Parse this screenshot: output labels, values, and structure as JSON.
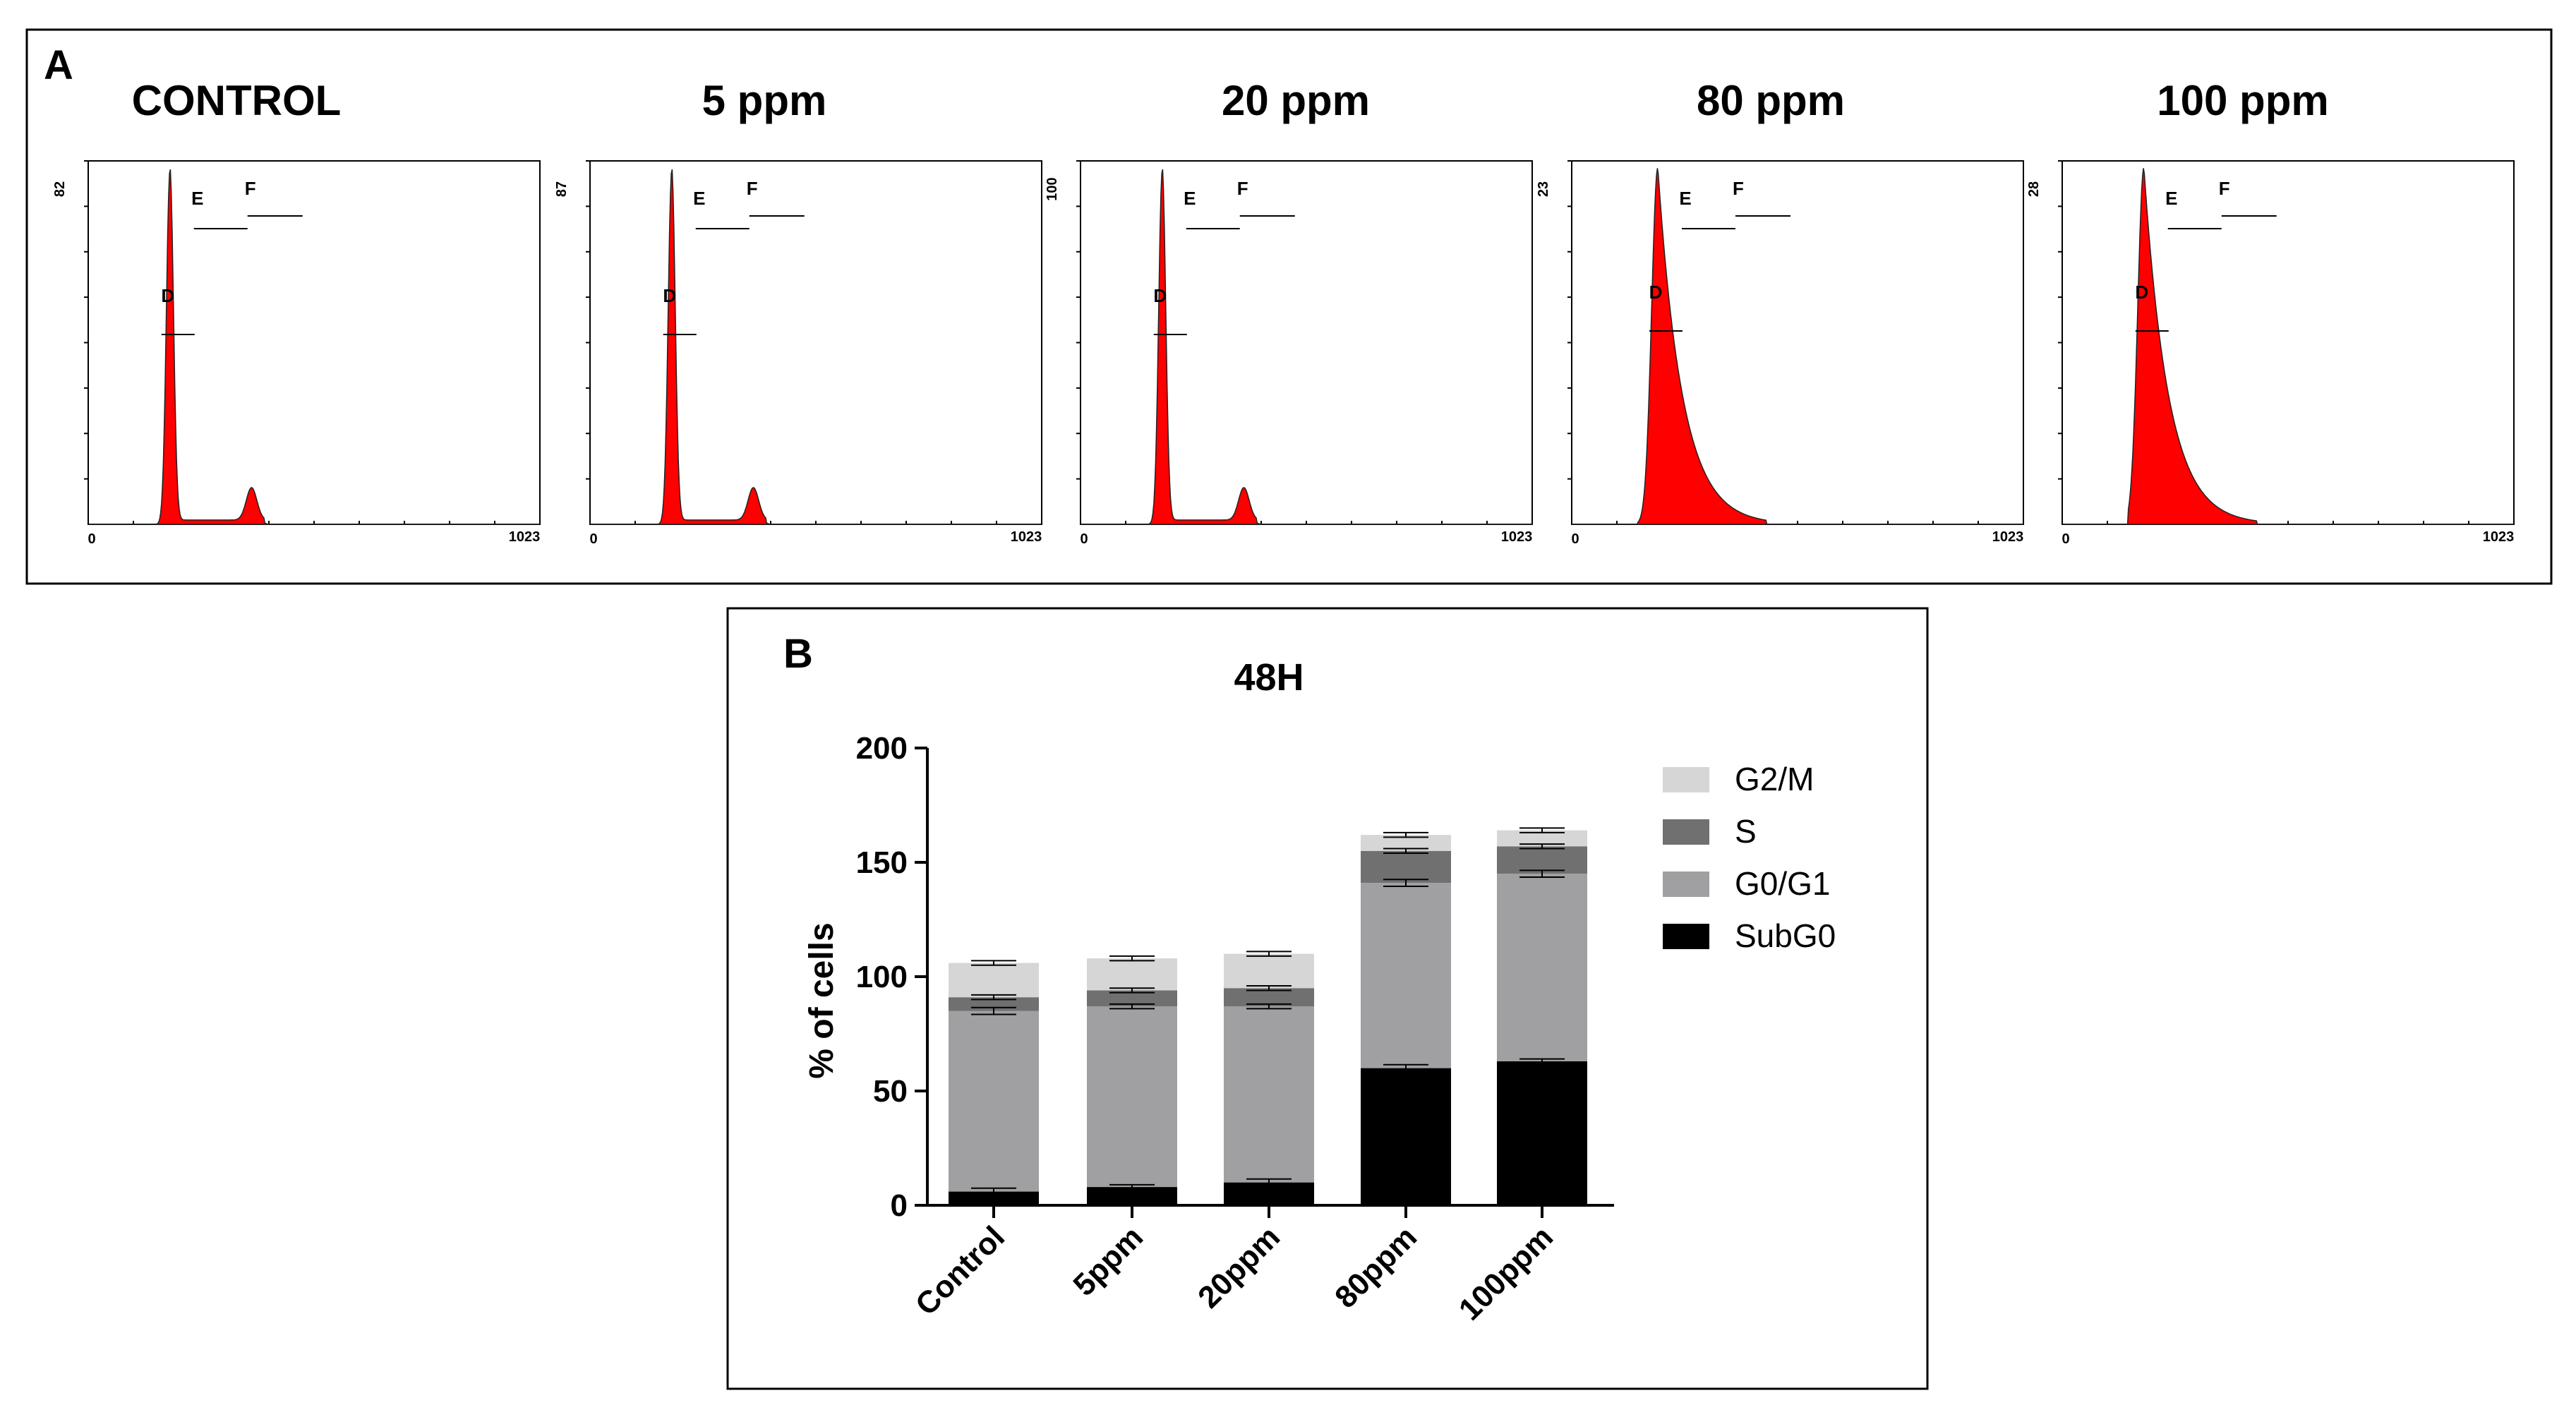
{
  "panel_a": {
    "label": "A",
    "histograms": [
      {
        "title": "CONTROL",
        "ymax": "82",
        "xmin": "0",
        "xmax": "1023",
        "gates": [
          "D",
          "E",
          "F"
        ]
      },
      {
        "title": "5 ppm",
        "ymax": "87",
        "xmin": "0",
        "xmax": "1023",
        "gates": [
          "D",
          "E",
          "F"
        ]
      },
      {
        "title": "20 ppm",
        "ymax": "100",
        "xmin": "0",
        "xmax": "1023",
        "gates": [
          "D",
          "E",
          "F"
        ]
      },
      {
        "title": "80 ppm",
        "ymax": "23",
        "xmin": "0",
        "xmax": "1023",
        "gates": [
          "D",
          "E",
          "F"
        ]
      },
      {
        "title": "100 ppm",
        "ymax": "28",
        "xmin": "0",
        "xmax": "1023",
        "gates": [
          "D",
          "E",
          "F"
        ]
      }
    ],
    "fill_color": "#ff0000"
  },
  "panel_b": {
    "label": "B"
  },
  "chart_data": [
    {
      "type": "histogram",
      "panel": "A",
      "description_series": "DNA content flow cytometry histograms (channel 0-1023)",
      "x_range": [
        0,
        1023
      ],
      "series": [
        {
          "name": "CONTROL",
          "y_max": 82,
          "g1_peak_channel": 185,
          "g2_peak_channel": 370
        },
        {
          "name": "5 ppm",
          "y_max": 87,
          "g1_peak_channel": 185,
          "g2_peak_channel": 370
        },
        {
          "name": "20 ppm",
          "y_max": 100,
          "g1_peak_channel": 185,
          "g2_peak_channel": 370
        },
        {
          "name": "80 ppm",
          "y_max": 23,
          "g1_peak_channel": 195,
          "g2_peak_channel": null
        },
        {
          "name": "100 ppm",
          "y_max": 28,
          "g1_peak_channel": 185,
          "g2_peak_channel": null
        }
      ]
    },
    {
      "type": "bar",
      "stacked": true,
      "panel": "B",
      "title": "48H",
      "xlabel": "",
      "ylabel": "% of cells",
      "ylim": [
        0,
        200
      ],
      "yticks": [
        "0",
        "50",
        "100",
        "150",
        "200"
      ],
      "categories": [
        "Control",
        "5ppm",
        "20ppm",
        "80ppm",
        "100ppm"
      ],
      "series": [
        {
          "name": "SubG0",
          "color": "#000000",
          "values": [
            6,
            8,
            10,
            60,
            63
          ],
          "errors": [
            1.5,
            1,
            1.5,
            1.5,
            1
          ]
        },
        {
          "name": "G0/G1",
          "color": "#a0a0a2",
          "values": [
            79,
            79,
            77,
            81,
            82
          ],
          "errors": [
            1.5,
            1,
            1,
            1.5,
            1.5
          ]
        },
        {
          "name": "S",
          "color": "#707070",
          "values": [
            6,
            7,
            8,
            14,
            12
          ],
          "errors": [
            1,
            1,
            1,
            1,
            1
          ]
        },
        {
          "name": "G2/M",
          "color": "#d6d6d6",
          "values": [
            15,
            14,
            15,
            7,
            7
          ],
          "errors": [
            1,
            1,
            1,
            1,
            1
          ]
        }
      ],
      "legend_order": [
        "G2/M",
        "S",
        "G0/G1",
        "SubG0"
      ],
      "legend_position": "right"
    }
  ]
}
